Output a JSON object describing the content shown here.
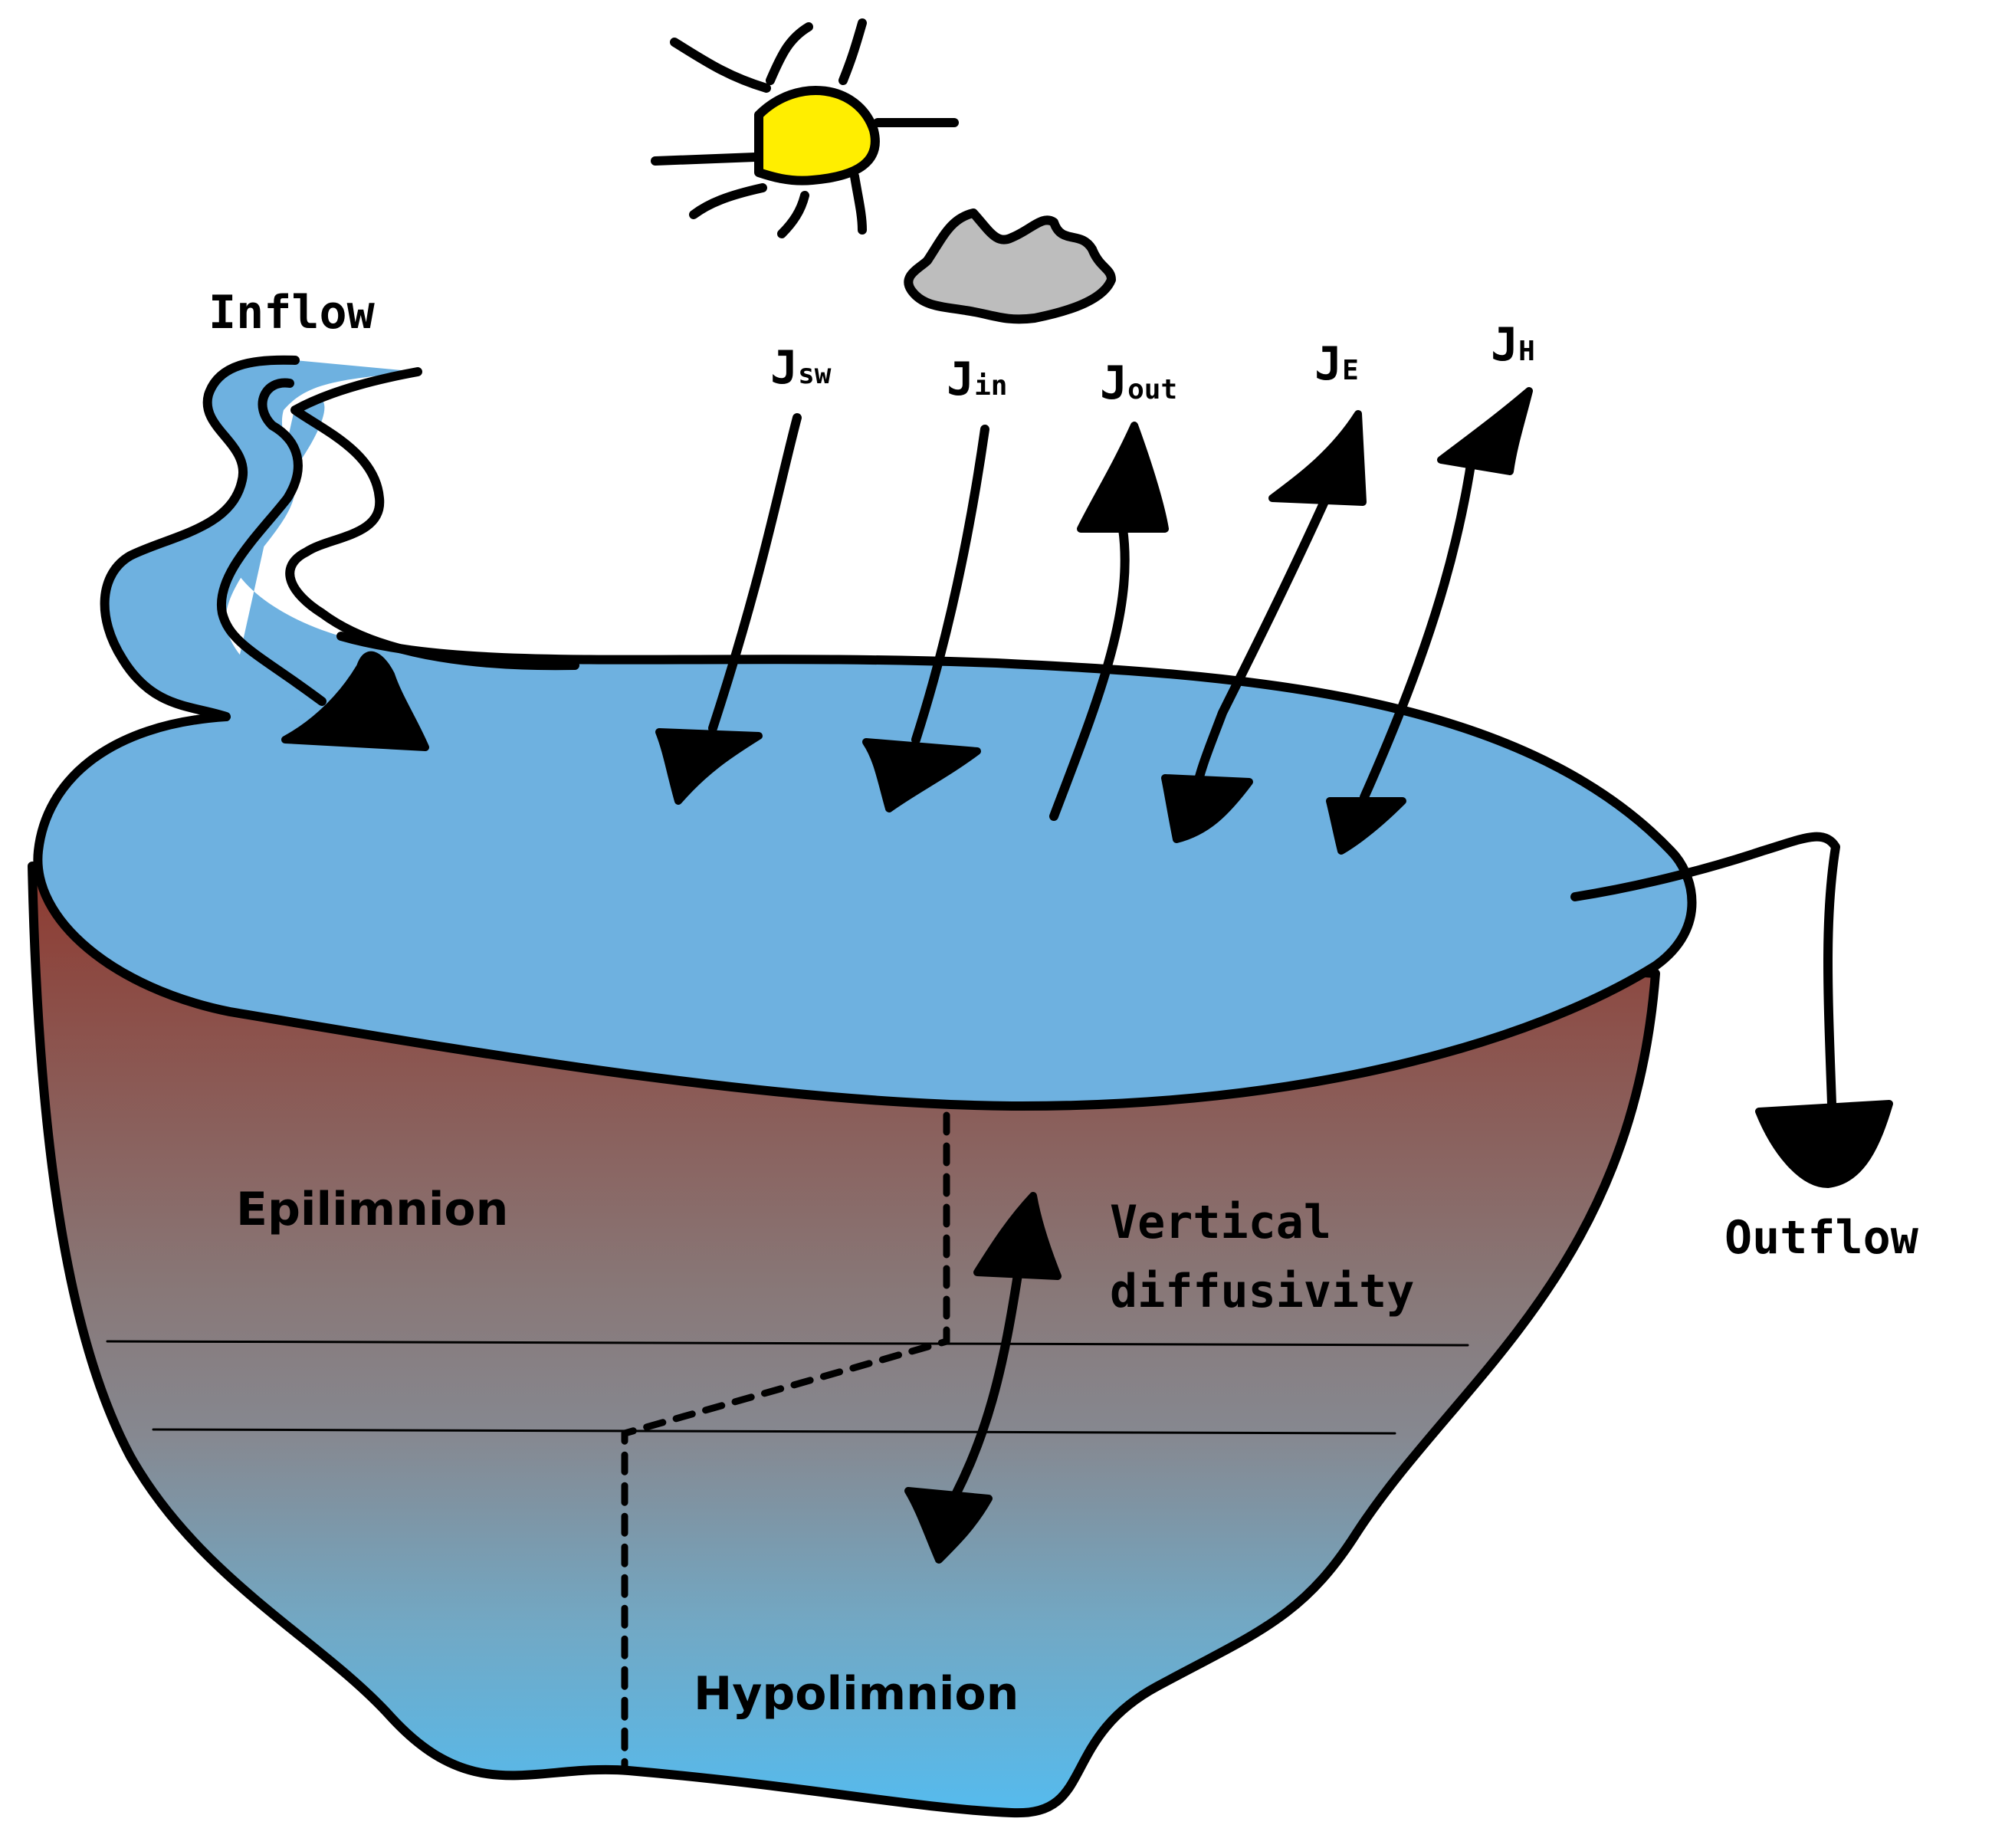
{
  "labels": {
    "inflow": "Inflow",
    "outflow": "Outflow",
    "epilimnion": "Epilimnion",
    "hypolimnion": "Hypolimnion",
    "vertical_line1": "Vertical",
    "vertical_line2": "diffusivity"
  },
  "fluxes": [
    {
      "symbol": "J",
      "subscript": "sw",
      "direction": "down"
    },
    {
      "symbol": "J",
      "subscript": "in",
      "direction": "down"
    },
    {
      "symbol": "J",
      "subscript": "out",
      "direction": "up"
    },
    {
      "symbol": "J",
      "subscript": "E",
      "direction": "both"
    },
    {
      "symbol": "J",
      "subscript": "H",
      "direction": "both"
    }
  ],
  "colors": {
    "water_surface": "#6eb1e0",
    "epilimnion_top": "#8e3a30",
    "metalimnion": "#888a90",
    "hypolimnion_bottom": "#55bbee",
    "sun": "#ffee00",
    "cloud": "#bdbdbd",
    "outline": "#000000"
  },
  "icons": [
    "sun-icon",
    "cloud-icon"
  ]
}
